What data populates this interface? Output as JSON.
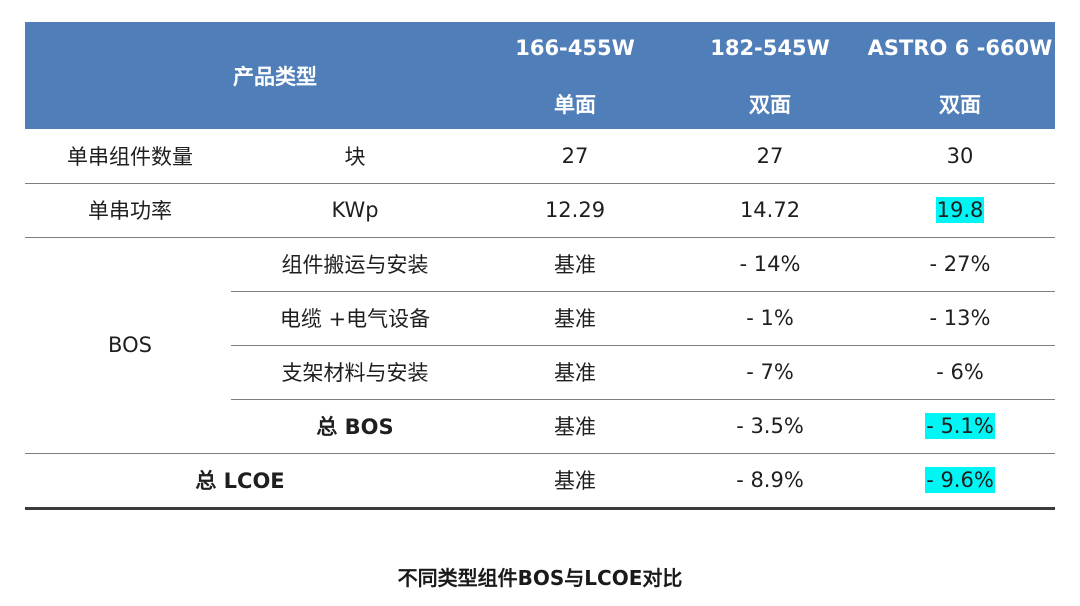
{
  "chart_data": {
    "type": "table",
    "title": "不同类型组件BOS与LCOE对比",
    "header": {
      "corner": "产品类型",
      "columns": [
        {
          "name": "166-455W",
          "type": "单面"
        },
        {
          "name": "182-545W",
          "type": "双面"
        },
        {
          "name": "ASTRO 6 -660W",
          "type": "双面"
        }
      ]
    },
    "rows": {
      "modules": {
        "label": "单串组件数量",
        "unit": "块",
        "values": [
          "27",
          "27",
          "30"
        ]
      },
      "power": {
        "label": "单串功率",
        "unit": "KWp",
        "values": [
          "12.29",
          "14.72",
          "19.8"
        ]
      },
      "bos_group": "BOS",
      "install": {
        "label": "组件搬运与安装",
        "values": [
          "基准",
          "- 14%",
          "- 27%"
        ]
      },
      "cable": {
        "label": "电缆 +电气设备",
        "values": [
          "基准",
          "- 1%",
          "- 13%"
        ]
      },
      "bracket": {
        "label": "支架材料与安装",
        "values": [
          "基准",
          "- 7%",
          "- 6%"
        ]
      },
      "bos_total": {
        "label": "总 BOS",
        "values": [
          "基准",
          "- 3.5%",
          "- 5.1%"
        ]
      },
      "lcoe": {
        "label": "总 LCOE",
        "values": [
          "基准",
          "- 8.9%",
          "- 9.6%"
        ]
      }
    },
    "highlight_color": "#00f5f5",
    "header_color": "#4f7eb8"
  }
}
